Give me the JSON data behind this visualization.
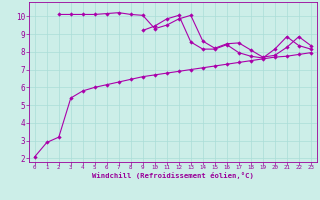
{
  "background_color": "#cceee8",
  "line_color": "#aa00aa",
  "xlim": [
    -0.5,
    23.5
  ],
  "ylim": [
    1.8,
    10.8
  ],
  "xticks": [
    0,
    1,
    2,
    3,
    4,
    5,
    6,
    7,
    8,
    9,
    10,
    11,
    12,
    13,
    14,
    15,
    16,
    17,
    18,
    19,
    20,
    21,
    22,
    23
  ],
  "yticks": [
    2,
    3,
    4,
    5,
    6,
    7,
    8,
    9,
    10
  ],
  "xlabel": "Windchill (Refroidissement éolien,°C)",
  "series1_x": [
    0,
    1,
    2,
    3,
    4,
    5,
    6,
    7,
    8,
    9,
    10,
    11,
    12,
    13,
    14,
    15,
    16,
    17,
    18,
    19,
    20,
    21,
    22,
    23
  ],
  "series1_y": [
    2.1,
    2.9,
    3.2,
    5.4,
    5.8,
    6.0,
    6.15,
    6.3,
    6.45,
    6.6,
    6.7,
    6.8,
    6.9,
    7.0,
    7.1,
    7.2,
    7.3,
    7.4,
    7.5,
    7.6,
    7.7,
    7.75,
    7.85,
    7.95
  ],
  "series2_x": [
    2,
    3,
    4,
    5,
    6,
    7,
    8,
    9,
    10,
    11,
    12,
    13,
    14,
    15,
    16,
    17,
    18,
    19,
    20,
    21,
    22,
    23
  ],
  "series2_y": [
    10.1,
    10.1,
    10.1,
    10.1,
    10.15,
    10.2,
    10.1,
    10.05,
    9.3,
    9.5,
    9.85,
    10.05,
    8.6,
    8.2,
    8.45,
    8.5,
    8.1,
    7.7,
    7.8,
    8.25,
    8.85,
    8.35
  ],
  "series3_x": [
    9,
    10,
    11,
    12,
    13,
    14,
    15,
    16,
    17,
    18,
    19,
    20,
    21,
    22,
    23
  ],
  "series3_y": [
    9.2,
    9.45,
    9.85,
    10.05,
    8.55,
    8.15,
    8.15,
    8.4,
    7.95,
    7.75,
    7.65,
    8.15,
    8.85,
    8.35,
    8.15
  ],
  "grid_color": "#aaddd8",
  "tick_color": "#990099",
  "spine_color": "#999999",
  "font_color": "#990099"
}
